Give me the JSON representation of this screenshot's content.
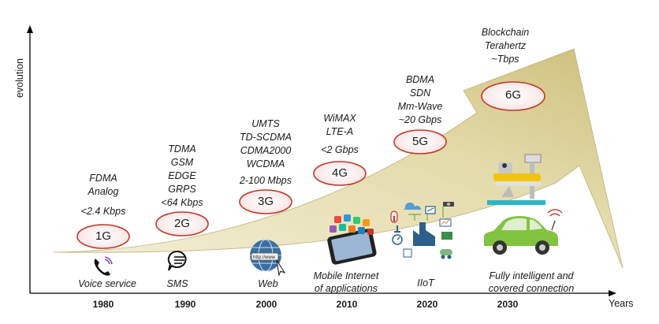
{
  "axis": {
    "y_label": "evolution",
    "x_label": "Years"
  },
  "years": [
    "1980",
    "1990",
    "2000",
    "2010",
    "2020",
    "2030"
  ],
  "generations": [
    {
      "label": "1G",
      "tech": [
        "FDMA",
        "Analog"
      ],
      "speed": "<2.4 Kbps",
      "service": [
        "Voice service"
      ]
    },
    {
      "label": "2G",
      "tech": [
        "TDMA",
        "GSM",
        "EDGE",
        "GRPS"
      ],
      "speed": "<64 Kbps",
      "service": [
        "SMS"
      ]
    },
    {
      "label": "3G",
      "tech": [
        "UMTS",
        "TD-SCDMA",
        "CDMA2000",
        "WCDMA"
      ],
      "speed": "2-100 Mbps",
      "service": [
        "Web"
      ]
    },
    {
      "label": "4G",
      "tech": [
        "WiMAX",
        "LTE-A"
      ],
      "speed": "<2 Gbps",
      "service": [
        "Mobile Internet",
        "of applications"
      ]
    },
    {
      "label": "5G",
      "tech": [
        "BDMA",
        "SDN",
        "Mm-Wave"
      ],
      "speed": "~20 Gbps",
      "service": [
        "IIoT"
      ]
    },
    {
      "label": "6G",
      "tech": [
        "Blockchain",
        "Terahertz"
      ],
      "speed": "~Tbps",
      "service": [
        "Fully intelligent and",
        "covered connection"
      ]
    }
  ],
  "icons": {
    "voice": "phone-icon",
    "sms": "chat-bubble-icon",
    "web": "globe-icon",
    "mobile": "smartphone-apps-icon",
    "iiot": "factory-iot-icon",
    "bed": "robotic-bed-icon",
    "car": "connected-car-icon"
  },
  "colors": {
    "arrow": "#d9cf96",
    "oval_stroke": "#c0392b",
    "oval_fill": "#fbeeee"
  }
}
